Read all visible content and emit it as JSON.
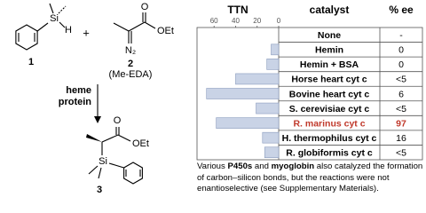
{
  "scheme": {
    "si_atom_1": "Si",
    "h_atom": "H",
    "plus": "+",
    "n2": "N₂",
    "o_atom_2": "O",
    "oet_2": "OEt",
    "label_1": "1",
    "label_2": "2",
    "name_2": "(Me-EDA)",
    "reagent_line1": "heme",
    "reagent_line2": "protein",
    "o_atom_3": "O",
    "oet_3": "OEt",
    "si_atom_3": "Si",
    "label_3": "3"
  },
  "chart_data": {
    "type": "bar",
    "orientation": "horizontal",
    "axis_label": "TTN",
    "catalyst_header": "catalyst",
    "ee_header": "% ee",
    "categories": [
      "None",
      "Hemin",
      "Hemin + BSA",
      "Horse heart cyt c",
      "Bovine heart cyt c",
      "S. cerevisiae cyt c",
      "R. marinus cyt c",
      "H. thermophilus cyt c",
      "R. globiformis cyt c"
    ],
    "values": [
      0,
      7,
      11,
      40,
      67,
      21,
      58,
      15,
      13
    ],
    "ee": [
      "-",
      "0",
      "0",
      "<5",
      "6",
      "<5",
      "97",
      "16",
      "<5"
    ],
    "label_colors": [
      "#000000",
      "#000000",
      "#000000",
      "#000000",
      "#000000",
      "#000000",
      "#c0392b",
      "#000000",
      "#000000"
    ],
    "color": "#c9d3e6",
    "xlim": [
      0,
      75
    ],
    "xticks": [
      60,
      40,
      20,
      0
    ]
  },
  "caption": [
    "Various",
    "P450s",
    "and",
    "myoglobin",
    "also catalyzed the formation of carbon–silicon bonds, but the reactions were not enantioselective (see Supplementary Materials)."
  ]
}
